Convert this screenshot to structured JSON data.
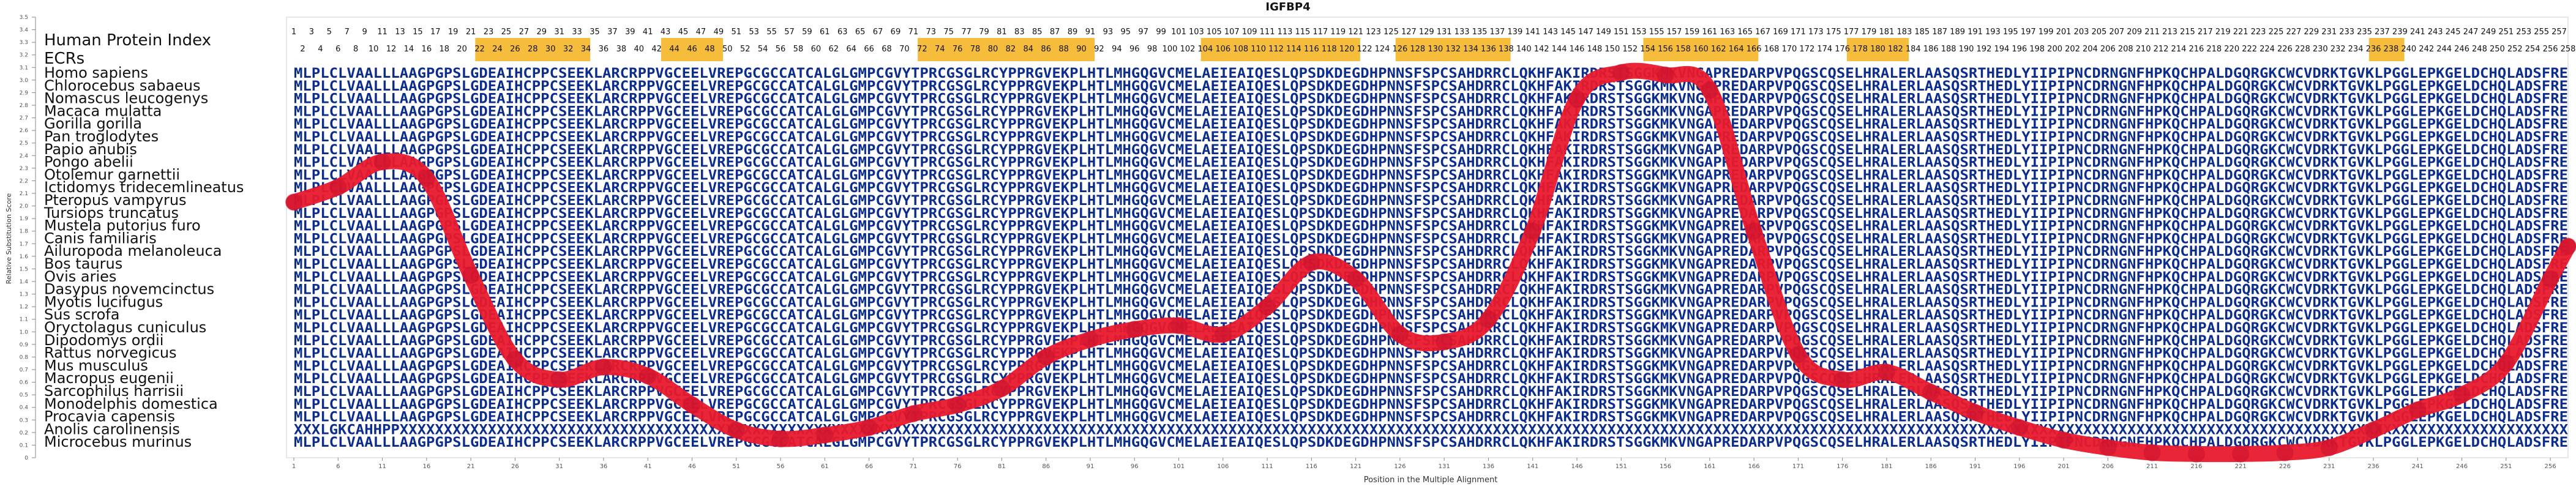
{
  "chart_data": {
    "type": "line",
    "title": "IGFBP4",
    "xlabel": "Position in the Multiple Alignment",
    "ylabel": "Relative Substitution Score",
    "xlim": [
      1,
      258
    ],
    "ylim": [
      0,
      3.5
    ],
    "y_ticks": [
      "0",
      "0.1",
      "0.2",
      "0.3",
      "0.4",
      "0.5",
      "0.6",
      "0.7",
      "0.8",
      "0.9",
      "1.0",
      "1.1",
      "1.2",
      "1.3",
      "1.4",
      "1.5",
      "1.6",
      "1.7",
      "1.8",
      "1.9",
      "2.0",
      "2.1",
      "2.2",
      "2.3",
      "2.4",
      "2.5",
      "2.6",
      "2.7",
      "2.8",
      "2.9",
      "3.0",
      "3.1",
      "3.2",
      "3.3",
      "3.4",
      "3.5"
    ],
    "x_ticks": [
      1,
      6,
      11,
      16,
      21,
      26,
      31,
      36,
      41,
      46,
      51,
      56,
      61,
      66,
      71,
      76,
      81,
      86,
      91,
      96,
      101,
      106,
      111,
      116,
      121,
      126,
      131,
      136,
      141,
      146,
      151,
      156,
      161,
      166,
      171,
      176,
      181,
      186,
      191,
      196,
      201,
      206,
      211,
      216,
      221,
      226,
      231,
      236,
      241,
      246,
      251,
      256
    ],
    "grid": false,
    "legend": "none",
    "line_color": "#e8192c",
    "point_color": "#c8102e",
    "top_number_color": "#111111",
    "ecr_highlight_color": "#f5b21a",
    "human_protein_index_label": "Human Protein Index",
    "ecrs_label": "ECRs",
    "series": [
      {
        "x": [
          1,
          6,
          11,
          16,
          21,
          26,
          31,
          36,
          41,
          46,
          51,
          56,
          61,
          66,
          71,
          76,
          81,
          86,
          91,
          96,
          101,
          106,
          111,
          116,
          121,
          126,
          131,
          136,
          141,
          146,
          151,
          156,
          161,
          166,
          171,
          176,
          181,
          186,
          191,
          196,
          201,
          206,
          211,
          216,
          221,
          226,
          231,
          236,
          241,
          246,
          251,
          256,
          258
        ],
        "values": [
          2.03,
          2.15,
          2.35,
          2.22,
          1.45,
          0.78,
          0.62,
          0.72,
          0.65,
          0.42,
          0.22,
          0.15,
          0.18,
          0.24,
          0.35,
          0.42,
          0.55,
          0.8,
          0.94,
          1.02,
          1.05,
          0.98,
          1.2,
          1.55,
          1.42,
          0.98,
          0.92,
          1.1,
          1.8,
          2.85,
          3.06,
          3.04,
          2.92,
          1.8,
          0.82,
          0.62,
          0.68,
          0.52,
          0.36,
          0.24,
          0.14,
          0.08,
          0.04,
          0.03,
          0.03,
          0.04,
          0.08,
          0.22,
          0.38,
          0.5,
          0.75,
          1.42,
          1.68
        ]
      }
    ],
    "ecr_ranges": [
      [
        22,
        34
      ],
      [
        43,
        49
      ],
      [
        72,
        91
      ],
      [
        104,
        121
      ],
      [
        126,
        138
      ],
      [
        154,
        166
      ],
      [
        177,
        183
      ],
      [
        236,
        239
      ]
    ],
    "species": [
      "Homo sapiens",
      "Chlorocebus sabaeus",
      "Nomascus leucogenys",
      "Macaca mulatta",
      "Gorilla gorilla",
      "Pan troglodytes",
      "Papio anubis",
      "Pongo abelii",
      "Otolemur garnettii",
      "Ictidomys tridecemlineatus",
      "Pteropus vampyrus",
      "Tursiops truncatus",
      "Mustela putorius furo",
      "Canis familiaris",
      "Ailuropoda melanoleuca",
      "Bos taurus",
      "Ovis aries",
      "Dasypus novemcinctus",
      "Myotis lucifugus",
      "Sus scrofa",
      "Oryctolagus cuniculus",
      "Dipodomys ordii",
      "Rattus norvegicus",
      "Mus musculus",
      "Macropus eugenii",
      "Sarcophilus harrisii",
      "Monodelphis domestica",
      "Procavia capensis",
      "Anolis carolinensis",
      "Microcebus murinus"
    ],
    "sequences": [
      "MLPLCLVAALLLAAGPGPSLGDEAIHCPPCSEEKLARCRPPVGCEELVREPGCGCCATCALGLGMPCGVYTPRCGSGLRCYPPRGVEKPLHTLMHGQGVCMELAEIEAIQESLQPSDKDEGDHPNNSFSPCSAHDRRCLQKHFAKIRDRSTSGGKMKVNGAPREDARPVPQGSCQSELHRALERLAASQSRTHEDLYIIPIPNCDRNGNFHPKQCHPALDGQRGKCWCVDRKTGVKLPGGLEPKGELDCHQLADSFRE",
      "MLPLCLVAALLLAAGPGPSLGDEAIHCPPCSEEKLARCRPPVGCEELVREPGCGCCATCALGLGMPCGVYTPRCGSGLRCYPPRGVEKPLHTLMHGQGVCMELAEIEAIQESLQPSDKDEGDHPNNSFSPCSAHDRRCLQKHFAKIRDRSTSGGKMKVNGAPREDARPVPQGSCQSELHRALERLAASQSRTHEDLYIIPIPNCDRNGNFHPKQCHPALDGQRGKCWCVDRKTGVKLPGGLEPKGELDCHQLADSFRE",
      "MLPLCLVAALLLAAGPGPSLGDEAIHCPPCSEEKLARCRPPVGCEELVREPGCGCCATCALGLGMPCGVYTPRCGSGLRCYPPRGVEKPLHTLMHGQGVCMELAEIEAIQESLQPSDKDEGDHPNNSFSPCSAHDRRCLQKHFAKIRDRSTSGGKMKVNGAPREDARPVPQGSCQSELHRALERLAASQSRTHEDLYIIPIPNCDRNGNFHPKQCHPALDGQRGKCWCVDRKTGVKLPGGLEPKGELDCHQLADSFRE",
      "MLPLCLVAALLLAAGPGPSLGDEAIHCPPCSEEKLARCRPPVGCEELVREPGCGCCATCALGLGMPCGVYTPRCGSGLRCYPPRGVEKPLHTLMHGQGVCMELAEIEAIQESLQPSDKDEGDHPNNSFSPCSAHDRRCLQKHFAKIRDRSTSGGKMKVNGAPREDARPVPQGSCQSELHRALERLAASQSRTHEDLYIIPIPNCDRNGNFHPKQCHPALDGQRGKCWCVDRKTGVKLPGGLEPKGELDCHQLADSFRE",
      "MLPLCLVAALLLAAGPGPSLGDEAIHCPPCSEEKLARCRPPVGCEELVREPGCGCCATCALGLGMPCGVYTPRCGSGLRCYPPRGVEKPLHTLMHGQGVCMELAEIEAIQESLQPSDKDEGDHPNNSFSPCSAHDRRCLQKHFAKIRDRSTSGGKMKVNGAPREDARPVPQGSCQSELHRALERLAASQSRTHEDLYIIPIPNCDRNGNFHPKQCHPALDGQRGKCWCVDRKTGVKLPGGLEPKGELDCHQLADSFRE",
      "MLPLCLVAALLLAAGPGPSLGDEAIHCPPCSEEKLARCRPPVGCEELVREPGCGCCATCALGLGMPCGVYTPRCGSGLRCYPPRGVEKPLHTLMHGQGVCMELAEIEAIQESLQPSDKDEGDHPNNSFSPCSAHDRRCLQKHFAKIRDRSTSGGKMKVNGAPREDARPVPQGSCQSELHRALERLAASQSRTHEDLYIIPIPNCDRNGNFHPKQCHPALDGQRGKCWCVDRKTGVKLPGGLEPKGELDCHQLADSFRE",
      "MLPLCLVAALLLAAGPGPSLGDEAIHCPPCSEEKLARCRPPVGCEELVREPGCGCCATCALGLGMPCGVYTPRCGSGLRCYPPRGVEKPLHTLMHGQGVCMELAEIEAIQESLQPSDKDEGDHPNNSFSPCSAHDRRCLQKHFAKIRDRSTSGGKMKVNGAPREDARPVPQGSCQSELHRALERLAASQSRTHEDLYIIPIPNCDRNGNFHPKQCHPALDGQRGKCWCVDRKTGVKLPGGLEPKGELDCHQLADSFRE",
      "MLPLCLVAALLLAAGPGPSLGDEAIHCPPCSEEKLARCRPPVGCEELVREPGCGCCATCALGLGMPCGVYTPRCGSGLRCYPPRGVEKPLHTLMHGQGVCMELAEIEAIQESLQPSDKDEGDHPNNSFSPCSAHDRRCLQKHFAKIRDRSTSGGKMKVNGAPREDARPVPQGSCQSELHRALERLAASQSRTHEDLYIIPIPNCDRNGNFHPKQCHPALDGQRGKCWCVDRKTGVKLPGGLEPKGELDCHQLADSFRE",
      "MLPLCLVAALLLAAGPGPSLGDEAIHCPPCSEEKLARCRPPVGCEELVREPGCGCCATCALGLGMPCGVYTPRCGSGLRCYPPRGVEKPLHTLMHGQGVCMELAEIEAIQESLQPSDKDEGDHPNNSFSPCSAHDRRCLQKHFAKIRDRSTSGGKMKVNGAPREDARPVPQGSCQSELHRALERLAASQSRTHEDLYIIPIPNCDRNGNFHPKQCHPALDGQRGKCWCVDRKTGVKLPGGLEPKGELDCHQLADSFRE",
      "MLPLCLVAALLLAAGPGPSLGDEAIHCPPCSEEKLARCRPPVGCEELVREPGCGCCATCALGLGMPCGVYTPRCGSGLRCYPPRGVEKPLHTLMHGQGVCMELAEIEAIQESLQPSDKDEGDHPNNSFSPCSAHDRRCLQKHFAKIRDRSTSGGKMKVNGAPREDARPVPQGSCQSELHRALERLAASQSRTHEDLYIIPIPNCDRNGNFHPKQCHPALDGQRGKCWCVDRKTGVKLPGGLEPKGELDCHQLADSFRE",
      "MLPLCLVAALLLAAGPGPSLGDEAIHCPPCSEEKLARCRPPVGCEELVREPGCGCCATCALGLGMPCGVYTPRCGSGLRCYPPRGVEKPLHTLMHGQGVCMELAEIEAIQESLQPSDKDEGDHPNNSFSPCSAHDRRCLQKHFAKIRDRSTSGGKMKVNGAPREDARPVPQGSCQSELHRALERLAASQSRTHEDLYIIPIPNCDRNGNFHPKQCHPALDGQRGKCWCVDRKTGVKLPGGLEPKGELDCHQLADSFRE",
      "MLPLCLVAALLLAAGPGPSLGDEAIHCPPCSEEKLARCRPPVGCEELVREPGCGCCATCALGLGMPCGVYTPRCGSGLRCYPPRGVEKPLHTLMHGQGVCMELAEIEAIQESLQPSDKDEGDHPNNSFSPCSAHDRRCLQKHFAKIRDRSTSGGKMKVNGAPREDARPVPQGSCQSELHRALERLAASQSRTHEDLYIIPIPNCDRNGNFHPKQCHPALDGQRGKCWCVDRKTGVKLPGGLEPKGELDCHQLADSFRE",
      "MLPLCLVAALLLAAGPGPSLGDEAIHCPPCSEEKLARCRPPVGCEELVREPGCGCCATCALGLGMPCGVYTPRCGSGLRCYPPRGVEKPLHTLMHGQGVCMELAEIEAIQESLQPSDKDEGDHPNNSFSPCSAHDRRCLQKHFAKIRDRSTSGGKMKVNGAPREDARPVPQGSCQSELHRALERLAASQSRTHEDLYIIPIPNCDRNGNFHPKQCHPALDGQRGKCWCVDRKTGVKLPGGLEPKGELDCHQLADSFRE",
      "MLPLCLVAALLLAAGPGPSLGDEAIHCPPCSEEKLARCRPPVGCEELVREPGCGCCATCALGLGMPCGVYTPRCGSGLRCYPPRGVEKPLHTLMHGQGVCMELAEIEAIQESLQPSDKDEGDHPNNSFSPCSAHDRRCLQKHFAKIRDRSTSGGKMKVNGAPREDARPVPQGSCQSELHRALERLAASQSRTHEDLYIIPIPNCDRNGNFHPKQCHPALDGQRGKCWCVDRKTGVKLPGGLEPKGELDCHQLADSFRE",
      "MLPLCLVAALLLAAGPGPSLGDEAIHCPPCSEEKLARCRPPVGCEELVREPGCGCCATCALGLGMPCGVYTPRCGSGLRCYPPRGVEKPLHTLMHGQGVCMELAEIEAIQESLQPSDKDEGDHPNNSFSPCSAHDRRCLQKHFAKIRDRSTSGGKMKVNGAPREDARPVPQGSCQSELHRALERLAASQSRTHEDLYIIPIPNCDRNGNFHPKQCHPALDGQRGKCWCVDRKTGVKLPGGLEPKGELDCHQLADSFRE",
      "MLPLCLVAALLLAAGPGPSLGDEAIHCPPCSEEKLARCRPPVGCEELVREPGCGCCATCALGLGMPCGVYTPRCGSGLRCYPPRGVEKPLHTLMHGQGVCMELAEIEAIQESLQPSDKDEGDHPNNSFSPCSAHDRRCLQKHFAKIRDRSTSGGKMKVNGAPREDARPVPQGSCQSELHRALERLAASQSRTHEDLYIIPIPNCDRNGNFHPKQCHPALDGQRGKCWCVDRKTGVKLPGGLEPKGELDCHQLADSFRE",
      "MLPLCLVAALLLAAGPGPSLGDEAIHCPPCSEEKLARCRPPVGCEELVREPGCGCCATCALGLGMPCGVYTPRCGSGLRCYPPRGVEKPLHTLMHGQGVCMELAEIEAIQESLQPSDKDEGDHPNNSFSPCSAHDRRCLQKHFAKIRDRSTSGGKMKVNGAPREDARPVPQGSCQSELHRALERLAASQSRTHEDLYIIPIPNCDRNGNFHPKQCHPALDGQRGKCWCVDRKTGVKLPGGLEPKGELDCHQLADSFRE",
      "MLPLCLVAALLLAAGPGPSLGDEAIHCPPCSEEKLARCRPPVGCEELVREPGCGCCATCALGLGMPCGVYTPRCGSGLRCYPPRGVEKPLHTLMHGQGVCMELAEIEAIQESLQPSDKDEGDHPNNSFSPCSAHDRRCLQKHFAKIRDRSTSGGKMKVNGAPREDARPVPQGSCQSELHRALERLAASQSRTHEDLYIIPIPNCDRNGNFHPKQCHPALDGQRGKCWCVDRKTGVKLPGGLEPKGELDCHQLADSFRE",
      "MLPLCLVAALLLAAGPGPSLGDEAIHCPPCSEEKLARCRPPVGCEELVREPGCGCCATCALGLGMPCGVYTPRCGSGLRCYPPRGVEKPLHTLMHGQGVCMELAEIEAIQESLQPSDKDEGDHPNNSFSPCSAHDRRCLQKHFAKIRDRSTSGGKMKVNGAPREDARPVPQGSCQSELHRALERLAASQSRTHEDLYIIPIPNCDRNGNFHPKQCHPALDGQRGKCWCVDRKTGVKLPGGLEPKGELDCHQLADSFRE",
      "MLPLCLVAALLLAAGPGPSLGDEAIHCPPCSEEKLARCRPPVGCEELVREPGCGCCATCALGLGMPCGVYTPRCGSGLRCYPPRGVEKPLHTLMHGQGVCMELAEIEAIQESLQPSDKDEGDHPNNSFSPCSAHDRRCLQKHFAKIRDRSTSGGKMKVNGAPREDARPVPQGSCQSELHRALERLAASQSRTHEDLYIIPIPNCDRNGNFHPKQCHPALDGQRGKCWCVDRKTGVKLPGGLEPKGELDCHQLADSFRE",
      "MLPLCLVAALLLAAGPGPSLGDEAIHCPPCSEEKLARCRPPVGCEELVREPGCGCCATCALGLGMPCGVYTPRCGSGLRCYPPRGVEKPLHTLMHGQGVCMELAEIEAIQESLQPSDKDEGDHPNNSFSPCSAHDRRCLQKHFAKIRDRSTSGGKMKVNGAPREDARPVPQGSCQSELHRALERLAASQSRTHEDLYIIPIPNCDRNGNFHPKQCHPALDGQRGKCWCVDRKTGVKLPGGLEPKGELDCHQLADSFRE",
      "MLPLCLVAALLLAAGPGPSLGDEAIHCPPCSEEKLARCRPPVGCEELVREPGCGCCATCALGLGMPCGVYTPRCGSGLRCYPPRGVEKPLHTLMHGQGVCMELAEIEAIQESLQPSDKDEGDHPNNSFSPCSAHDRRCLQKHFAKIRDRSTSGGKMKVNGAPREDARPVPQGSCQSELHRALERLAASQSRTHEDLYIIPIPNCDRNGNFHPKQCHPALDGQRGKCWCVDRKTGVKLPGGLEPKGELDCHQLADSFRE",
      "MLPLCLVAALLLAAGPGPSLGDEAIHCPPCSEEKLARCRPPVGCEELVREPGCGCCATCALGLGMPCGVYTPRCGSGLRCYPPRGVEKPLHTLMHGQGVCMELAEIEAIQESLQPSDKDEGDHPNNSFSPCSAHDRRCLQKHFAKIRDRSTSGGKMKVNGAPREDARPVPQGSCQSELHRALERLAASQSRTHEDLYIIPIPNCDRNGNFHPKQCHPALDGQRGKCWCVDRKTGVKLPGGLEPKGELDCHQLADSFRE",
      "MLPLCLVAALLLAAGPGPSLGDEAIHCPPCSEEKLARCRPPVGCEELVREPGCGCCATCALGLGMPCGVYTPRCGSGLRCYPPRGVEKPLHTLMHGQGVCMELAEIEAIQESLQPSDKDEGDHPNNSFSPCSAHDRRCLQKHFAKIRDRSTSGGKMKVNGAPREDARPVPQGSCQSELHRALERLAASQSRTHEDLYIIPIPNCDRNGNFHPKQCHPALDGQRGKCWCVDRKTGVKLPGGLEPKGELDCHQLADSFRE",
      "MLPLCLVAALLLAAGPGPSLGDEAIHCPPCSEEKLARCRPPVGCEELVREPGCGCCATCALGLGMPCGVYTPRCGSGLRCYPPRGVEKPLHTLMHGQGVCMELAEIEAIQESLQPSDKDEGDHPNNSFSPCSAHDRRCLQKHFAKIRDRSTSGGKMKVNGAPREDARPVPQGSCQSELHRALERLAASQSRTHEDLYIIPIPNCDRNGNFHPKQCHPALDGQRGKCWCVDRKTGVKLPGGLEPKGELDCHQLADSFRE",
      "MLPLCLVAALLLAAGPGPSLGDEAIHCPPCSEEKLARCRPPVGCEELVREPGCGCCATCALGLGMPCGVYTPRCGSGLRCYPPRGVEKPLHTLMHGQGVCMELAEIEAIQESLQPSDKDEGDHPNNSFSPCSAHDRRCLQKHFAKIRDRSTSGGKMKVNGAPREDARPVPQGSCQSELHRALERLAASQSRTHEDLYIIPIPNCDRNGNFHPKQCHPALDGQRGKCWCVDRKTGVKLPGGLEPKGELDCHQLADSFRE",
      "MLPLCLVAALLLAAGPGPSLGDEAIHCPPCSEEKLARCRPPVGCEELVREPGCGCCATCALGLGMPCGVYTPRCGSGLRCYPPRGVEKPLHTLMHGQGVCMELAEIEAIQESLQPSDKDEGDHPNNSFSPCSAHDRRCLQKHFAKIRDRSTSGGKMKVNGAPREDARPVPQGSCQSELHRALERLAASQSRTHEDLYIIPIPNCDRNGNFHPKQCHPALDGQRGKCWCVDRKTGVKLPGGLEPKGELDCHQLADSFRE",
      "MLPLCLVAALLLAAGPGPSLGDEAIHCPPCSEEKLARCRPPVGCEELVREPGCGCCATCALGLGMPCGVYTPRCGSGLRCYPPRGVEKPLHTLMHGQGVCMELAEIEAIQESLQPSDKDEGDHPNNSFSPCSAHDRRCLQKHFAKIRDRSTSGGKMKVNGAPREDARPVPQGSCQSELHRALERLAASQSRTHEDLYIIPIPNCDRNGNFHPKQCHPALDGQRGKCWCVDRKTGVKLPGGLEPKGELDCHQLADSFRE",
      "XXXLGKCAHHPPXXXXXXXXXXXXXXXXXXXXXXXXXXXXXXXXXXXXXXXXXXXXXXXXXXXXXXXXXXXXXXXXXXXXXXXXXXXXXXXXXXXXXXXXXXXXXXXXXXXXXXXXXXXXXXXXXXXXXXXXXXXXXXXXXXXXXXXXXXXXXXXXXXXXXXXXXXXXXXXXXXXXXXXXXXXXXXXXXXXXXXXXXXXXXXXXXXXXXXXXXXXXXXXXXXXXXXXXXXXXXXXXXXXXXXXXXXXXXXXXXXXXXX",
      "MLPLCLVAALLLAAGPGPSLGDEAIHCPPCSEEKLARCRPPVGCEELVREPGCGCCATCALGLGMPCGVYTPRCGSGLRCYPPRGVEKPLHTLMHGQGVCMELAEIEAIQESLQPSDKDEGDHPNNSFSPCSAHDRRCLQKHFAKIRDRSTSGGKMKVNGAPREDARPVPQGSCQSELHRALERLAASQSRTHEDLYIIPIPNCDRNGNFHPKQCHPALDGQRGKCWCVDRKTGVKLPGGLEPKGELDCHQLADSFRE"
    ]
  }
}
